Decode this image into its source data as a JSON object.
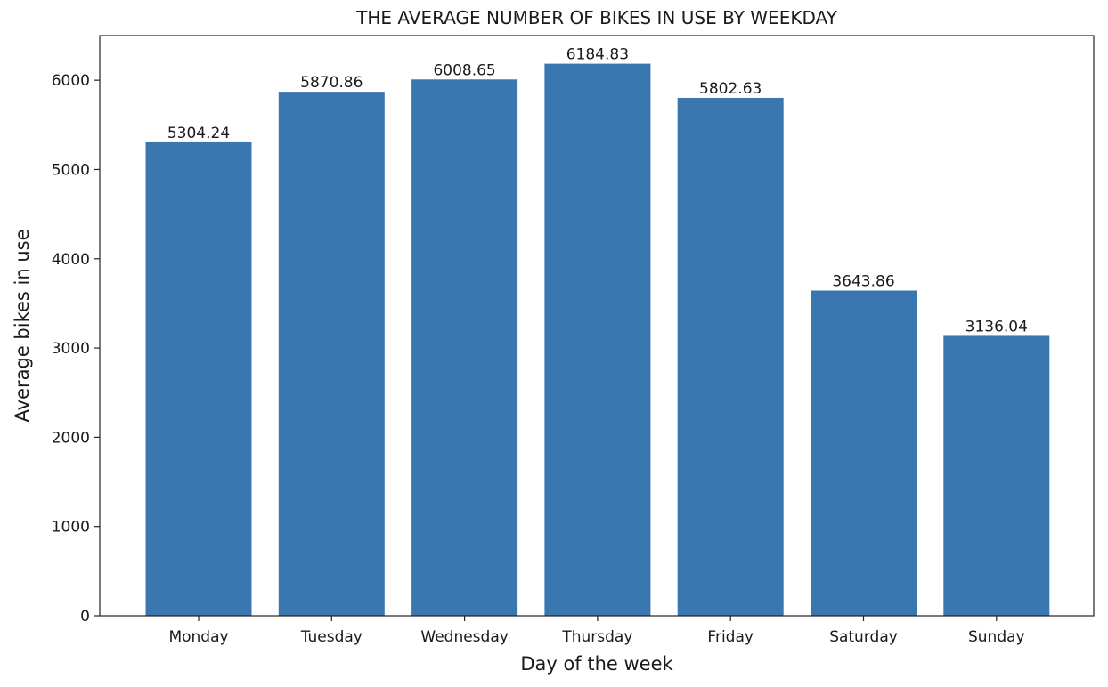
{
  "chart_data": {
    "type": "bar",
    "title": "THE AVERAGE NUMBER OF BIKES IN USE BY WEEKDAY",
    "xlabel": "Day of the week",
    "ylabel": "Average bikes in use",
    "categories": [
      "Monday",
      "Tuesday",
      "Wednesday",
      "Thursday",
      "Friday",
      "Saturday",
      "Sunday"
    ],
    "values": [
      5304.24,
      5870.86,
      6008.65,
      6184.83,
      5802.63,
      3643.86,
      3136.04
    ],
    "data_labels": [
      "5304.24",
      "5870.86",
      "6008.65",
      "6184.83",
      "5802.63",
      "3643.86",
      "3136.04"
    ],
    "ylim": [
      0,
      6500
    ],
    "yticks": [
      0,
      1000,
      2000,
      3000,
      4000,
      5000,
      6000
    ],
    "grid": false,
    "legend": "none",
    "bar_color": "#3a76af"
  }
}
